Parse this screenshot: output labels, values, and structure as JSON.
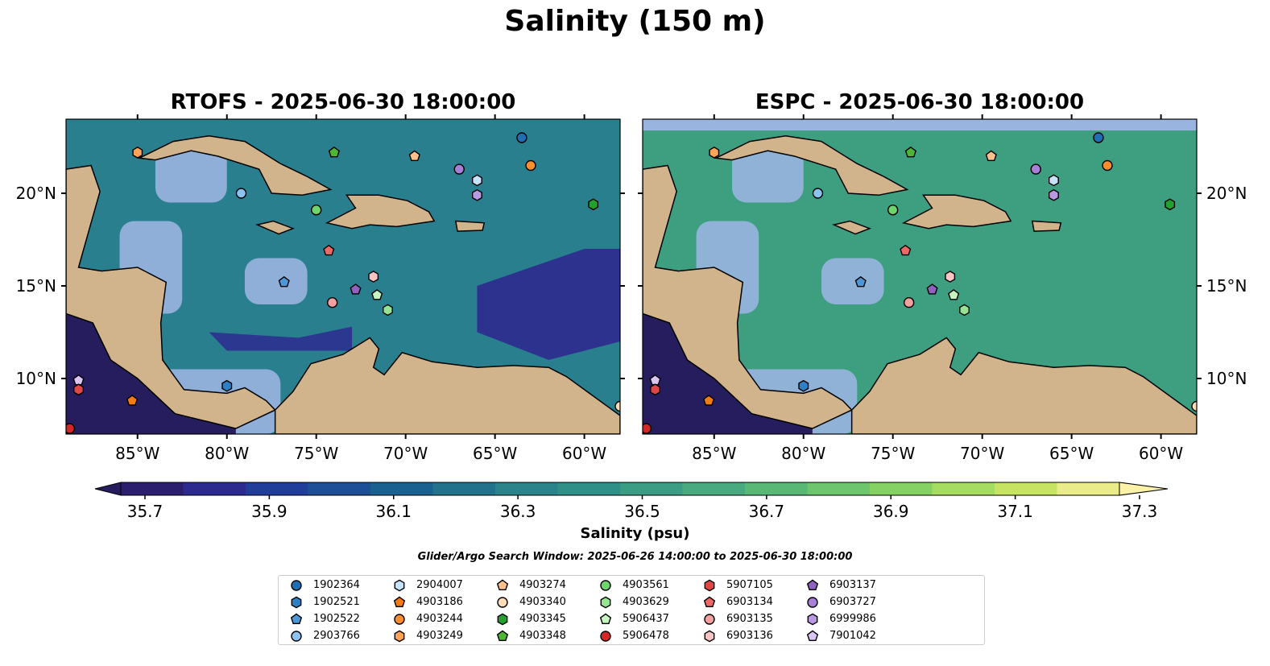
{
  "figure": {
    "title": "Salinity (150 m)",
    "panels": [
      {
        "id": "rtofs",
        "title": "RTOFS - 2025-06-30 18:00:00"
      },
      {
        "id": "espc",
        "title": "ESPC - 2025-06-30 18:00:00"
      }
    ],
    "lon_ticks": [
      "85°W",
      "80°W",
      "75°W",
      "70°W",
      "65°W",
      "60°W"
    ],
    "lat_ticks": [
      "20°N",
      "15°N",
      "10°N"
    ],
    "extent": {
      "lon": [
        -89,
        -58
      ],
      "lat": [
        7,
        24
      ]
    }
  },
  "colorbar": {
    "label": "Salinity (psu)",
    "tick_labels": [
      "35.7",
      "35.9",
      "36.1",
      "36.3",
      "36.5",
      "36.7",
      "36.9",
      "37.1",
      "37.3"
    ],
    "colors": [
      "#2c1e6e",
      "#2d2a8f",
      "#213d9c",
      "#1c4f96",
      "#1b6190",
      "#23728c",
      "#2b8489",
      "#2f9087",
      "#3b9d84",
      "#4aaa7f",
      "#5ab877",
      "#6dc56e",
      "#86d163",
      "#a6dc5f",
      "#c6e462",
      "#e9ec88"
    ],
    "min_color": "#261d5e",
    "max_color": "#fbf2a7"
  },
  "search_window": "Glider/Argo Search Window: 2025-06-26 14:00:00 to 2025-06-30 18:00:00",
  "map_colors": {
    "land": "#d2b48c",
    "shelf": "#9ab4e0",
    "rtofs_ocean": "#2a7f8f",
    "espc_ocean": "#3d9e80"
  },
  "legend": [
    {
      "id": "1902364",
      "marker": "circle",
      "color": "#1f6fb4"
    },
    {
      "id": "1902521",
      "marker": "hexagon",
      "color": "#2e80c5"
    },
    {
      "id": "1902522",
      "marker": "pentagon",
      "color": "#4c97d8"
    },
    {
      "id": "2903766",
      "marker": "circle",
      "color": "#8cc2ef"
    },
    {
      "id": "2904007",
      "marker": "hexagon",
      "color": "#c7e3f8"
    },
    {
      "id": "4903186",
      "marker": "pentagon",
      "color": "#f47a12"
    },
    {
      "id": "4903244",
      "marker": "circle",
      "color": "#ff8d2e"
    },
    {
      "id": "4903249",
      "marker": "hexagon",
      "color": "#ffa35a"
    },
    {
      "id": "4903274",
      "marker": "pentagon",
      "color": "#ffc08c"
    },
    {
      "id": "4903340",
      "marker": "circle",
      "color": "#ffdcb8"
    },
    {
      "id": "4903345",
      "marker": "hexagon",
      "color": "#24a02f"
    },
    {
      "id": "4903348",
      "marker": "pentagon",
      "color": "#4fb536"
    },
    {
      "id": "4903561",
      "marker": "circle",
      "color": "#6fd46b"
    },
    {
      "id": "4903629",
      "marker": "hexagon",
      "color": "#95e493"
    },
    {
      "id": "5906437",
      "marker": "pentagon",
      "color": "#c6f5c1"
    },
    {
      "id": "5906478",
      "marker": "circle",
      "color": "#d62728"
    },
    {
      "id": "5907105",
      "marker": "hexagon",
      "color": "#e04646"
    },
    {
      "id": "6903134",
      "marker": "pentagon",
      "color": "#ef6868"
    },
    {
      "id": "6903135",
      "marker": "circle",
      "color": "#f4a0a0"
    },
    {
      "id": "6903136",
      "marker": "hexagon",
      "color": "#f8c4c4"
    },
    {
      "id": "6903137",
      "marker": "pentagon",
      "color": "#8f62c0"
    },
    {
      "id": "6903727",
      "marker": "circle",
      "color": "#a77fd6"
    },
    {
      "id": "6999986",
      "marker": "hexagon",
      "color": "#b99ae2"
    },
    {
      "id": "7901042",
      "marker": "pentagon",
      "color": "#dcc4f4"
    }
  ],
  "floats": [
    {
      "id": "4903249",
      "lon": -85.0,
      "lat": 22.2
    },
    {
      "id": "4903348",
      "lon": -74.0,
      "lat": 22.2
    },
    {
      "id": "4903274",
      "lon": -69.5,
      "lat": 22.0
    },
    {
      "id": "1902364",
      "lon": -63.5,
      "lat": 23.0
    },
    {
      "id": "6903727",
      "lon": -67.0,
      "lat": 21.3
    },
    {
      "id": "4903244",
      "lon": -63.0,
      "lat": 21.5
    },
    {
      "id": "2904007",
      "lon": -66.0,
      "lat": 20.7
    },
    {
      "id": "6999986",
      "lon": -66.0,
      "lat": 19.9
    },
    {
      "id": "4903345",
      "lon": -59.5,
      "lat": 19.4
    },
    {
      "id": "2903766",
      "lon": -79.2,
      "lat": 20.0
    },
    {
      "id": "4903561",
      "lon": -75.0,
      "lat": 19.1
    },
    {
      "id": "6903134",
      "lon": -74.3,
      "lat": 16.9
    },
    {
      "id": "1902522",
      "lon": -76.8,
      "lat": 15.2
    },
    {
      "id": "6903136",
      "lon": -71.8,
      "lat": 15.5
    },
    {
      "id": "6903137",
      "lon": -72.8,
      "lat": 14.8
    },
    {
      "id": "5906437",
      "lon": -71.6,
      "lat": 14.5
    },
    {
      "id": "6903135",
      "lon": -74.1,
      "lat": 14.1
    },
    {
      "id": "4903629",
      "lon": -71.0,
      "lat": 13.7
    },
    {
      "id": "7901042",
      "lon": -88.3,
      "lat": 9.9
    },
    {
      "id": "5907105",
      "lon": -88.3,
      "lat": 9.4
    },
    {
      "id": "4903186",
      "lon": -85.3,
      "lat": 8.8
    },
    {
      "id": "1902521",
      "lon": -80.0,
      "lat": 9.6
    },
    {
      "id": "5906478",
      "lon": -88.8,
      "lat": 7.3
    },
    {
      "id": "4903340",
      "lon": -58.0,
      "lat": 8.5
    }
  ]
}
